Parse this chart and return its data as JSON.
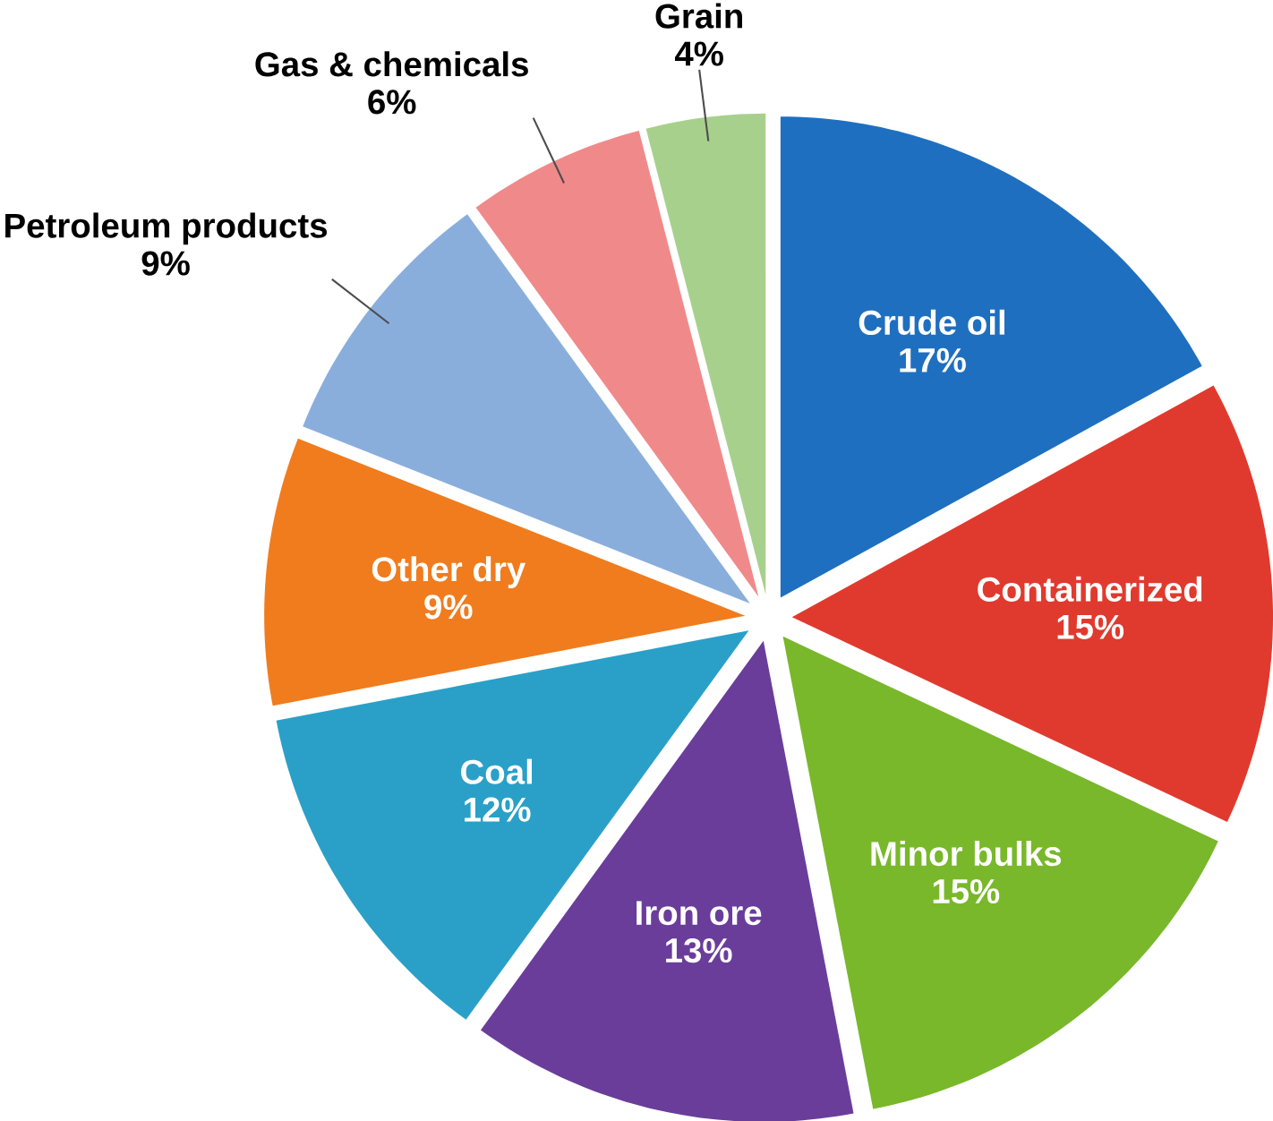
{
  "chart_data": {
    "type": "pie",
    "categories": [
      "Crude oil",
      "Containerized",
      "Minor bulks",
      "Iron ore",
      "Coal",
      "Other dry",
      "Petroleum products",
      "Gas & chemicals",
      "Grain"
    ],
    "values": [
      17,
      15,
      15,
      13,
      12,
      9,
      9,
      6,
      4
    ],
    "value_labels": [
      "17%",
      "15%",
      "15%",
      "13%",
      "12%",
      "9%",
      "9%",
      "6%",
      "4%"
    ],
    "colors": [
      "#1f6fc0",
      "#e03a2e",
      "#78b82a",
      "#6a3d9a",
      "#2aa0c8",
      "#f07c1e",
      "#8aaedc",
      "#f08a8a",
      "#a8d08d"
    ]
  }
}
